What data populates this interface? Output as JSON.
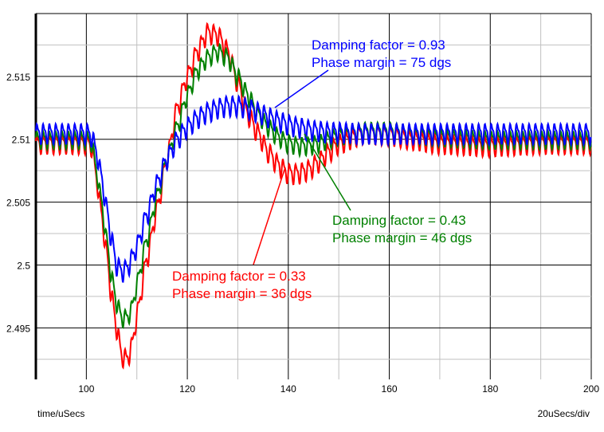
{
  "chart_data": {
    "type": "line",
    "title": "",
    "xlabel": "time/uSecs",
    "scale_label": "20uSecs/div",
    "xlim": [
      90,
      200
    ],
    "ylim": [
      2.4909,
      2.52
    ],
    "x_ticks": [
      100,
      120,
      140,
      160,
      180,
      200
    ],
    "x_tick_labels": [
      "100",
      "120",
      "140",
      "160",
      "180",
      "200"
    ],
    "y_ticks": [
      2.495,
      2.5,
      2.505,
      2.51,
      2.515
    ],
    "y_tick_labels": [
      "2.495",
      "2.5",
      "2.505",
      "2.51",
      "2.515"
    ],
    "grid": true,
    "x": [
      90,
      100,
      101,
      102,
      103,
      104,
      105,
      106,
      107,
      108,
      109,
      110,
      112,
      114,
      116,
      118,
      120,
      122,
      124,
      126,
      128,
      130,
      132,
      134,
      136,
      138,
      140,
      142,
      144,
      146,
      148,
      150,
      155,
      160,
      165,
      170,
      180,
      190,
      200
    ],
    "ripple_period_us": 1.25,
    "series": [
      {
        "color": "#ff0000",
        "ripple_amplitude": 0.0008,
        "values": [
          2.5097,
          2.5097,
          2.5095,
          2.507,
          2.504,
          2.501,
          2.4975,
          2.495,
          2.4928,
          2.4925,
          2.4935,
          2.496,
          2.5005,
          2.5045,
          2.5085,
          2.5125,
          2.515,
          2.517,
          2.5185,
          2.5183,
          2.517,
          2.5145,
          2.512,
          2.5105,
          2.509,
          2.508,
          2.5073,
          2.5073,
          2.5076,
          2.5082,
          2.509,
          2.5097,
          2.5105,
          2.5104,
          2.51,
          2.5097,
          2.5095,
          2.5097,
          2.5097
        ]
      },
      {
        "color": "#008000",
        "ripple_amplitude": 0.0007,
        "values": [
          2.51,
          2.51,
          2.5098,
          2.5075,
          2.505,
          2.502,
          2.499,
          2.497,
          2.4958,
          2.4958,
          2.4965,
          2.4985,
          2.502,
          2.5055,
          2.5085,
          2.511,
          2.5135,
          2.5155,
          2.5165,
          2.517,
          2.5165,
          2.515,
          2.5135,
          2.512,
          2.511,
          2.5102,
          2.5097,
          2.5095,
          2.5095,
          2.5097,
          2.51,
          2.5103,
          2.5107,
          2.5107,
          2.5104,
          2.5102,
          2.51,
          2.51,
          2.51
        ]
      },
      {
        "color": "#0000ff",
        "ripple_amplitude": 0.0008,
        "values": [
          2.5105,
          2.5105,
          2.5103,
          2.509,
          2.507,
          2.5045,
          2.502,
          2.5,
          2.4995,
          2.4997,
          2.5005,
          2.5015,
          2.504,
          2.5065,
          2.5085,
          2.51,
          2.511,
          2.5117,
          2.5122,
          2.5125,
          2.5127,
          2.5127,
          2.5125,
          2.5122,
          2.5118,
          2.5115,
          2.5112,
          2.511,
          2.5108,
          2.5107,
          2.5106,
          2.5106,
          2.5105,
          2.5105,
          2.5105,
          2.5105,
          2.5105,
          2.5105,
          2.5105
        ]
      }
    ],
    "annotations": [
      {
        "color": "#0000ff",
        "line1": "Damping factor = 0.93",
        "line2": "Phase margin = 75 dgs"
      },
      {
        "color": "#008000",
        "line1": "Damping factor = 0.43",
        "line2": "Phase margin = 46 dgs"
      },
      {
        "color": "#ff0000",
        "line1": "Damping factor = 0.33",
        "line2": "Phase margin = 36 dgs"
      }
    ]
  }
}
